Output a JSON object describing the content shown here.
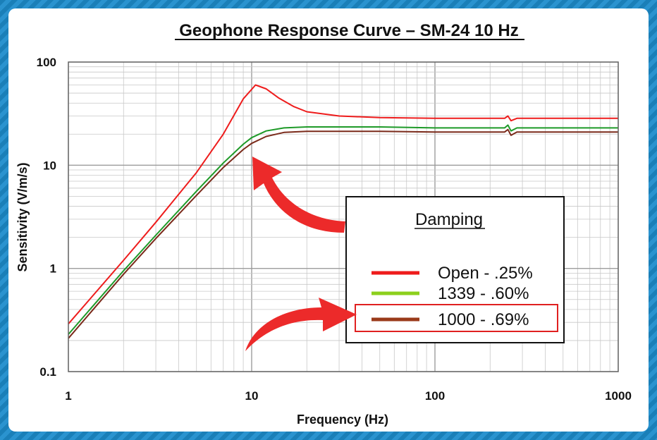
{
  "chart_data": {
    "type": "line",
    "title": "Geophone Response Curve – SM-24 10 Hz",
    "xlabel": "Frequency (Hz)",
    "ylabel": "Sensitivity (V/m/s)",
    "x_scale": "log",
    "y_scale": "log",
    "xlim": [
      1,
      1000
    ],
    "ylim": [
      0.1,
      100
    ],
    "x_ticks": [
      "1",
      "10",
      "100",
      "1000"
    ],
    "y_ticks": [
      "0.1",
      "1",
      "10",
      "100"
    ],
    "grid": true,
    "legend": {
      "title": "Damping",
      "placement": "right",
      "highlighted_entry": 2
    },
    "series": [
      {
        "name": "Open - .25%",
        "color": "#ee1c1c",
        "points": [
          [
            1,
            0.29
          ],
          [
            2,
            1.2
          ],
          [
            3,
            2.8
          ],
          [
            5,
            8.5
          ],
          [
            7,
            20
          ],
          [
            9,
            44
          ],
          [
            10.5,
            60
          ],
          [
            12,
            55
          ],
          [
            14,
            45
          ],
          [
            17,
            37
          ],
          [
            20,
            33
          ],
          [
            30,
            30
          ],
          [
            50,
            29
          ],
          [
            100,
            28.5
          ],
          [
            240,
            28.5
          ],
          [
            250,
            30
          ],
          [
            260,
            27
          ],
          [
            280,
            28.5
          ],
          [
            1000,
            28.5
          ]
        ]
      },
      {
        "name": "1339  - .60%",
        "color": "#1e9a28",
        "legend_color": "#8cd01c",
        "points": [
          [
            1,
            0.23
          ],
          [
            2,
            0.95
          ],
          [
            3,
            2.1
          ],
          [
            5,
            5.6
          ],
          [
            7,
            10.5
          ],
          [
            9,
            16
          ],
          [
            10,
            18.5
          ],
          [
            12,
            21.5
          ],
          [
            15,
            23
          ],
          [
            20,
            23.5
          ],
          [
            50,
            23.5
          ],
          [
            100,
            23
          ],
          [
            240,
            23
          ],
          [
            250,
            24.5
          ],
          [
            260,
            21.5
          ],
          [
            280,
            23
          ],
          [
            1000,
            23
          ]
        ]
      },
      {
        "name": "1000  - .69%",
        "color": "#7a2a1a",
        "legend_color": "#9a3a1a",
        "points": [
          [
            1,
            0.21
          ],
          [
            2,
            0.88
          ],
          [
            3,
            1.95
          ],
          [
            5,
            5.1
          ],
          [
            7,
            9.5
          ],
          [
            9,
            14.2
          ],
          [
            10,
            16.3
          ],
          [
            12,
            19
          ],
          [
            15,
            20.8
          ],
          [
            20,
            21.3
          ],
          [
            50,
            21.3
          ],
          [
            100,
            21
          ],
          [
            240,
            21
          ],
          [
            250,
            22.2
          ],
          [
            260,
            19.5
          ],
          [
            280,
            21
          ],
          [
            1000,
            21
          ]
        ]
      }
    ],
    "annotations": [
      {
        "type": "arrow",
        "color": "#ec2a2a",
        "points_to": "curve knee near 10 Hz"
      },
      {
        "type": "arrow",
        "color": "#ec2a2a",
        "points_to": "legend entry 1000 - .69%"
      }
    ]
  }
}
